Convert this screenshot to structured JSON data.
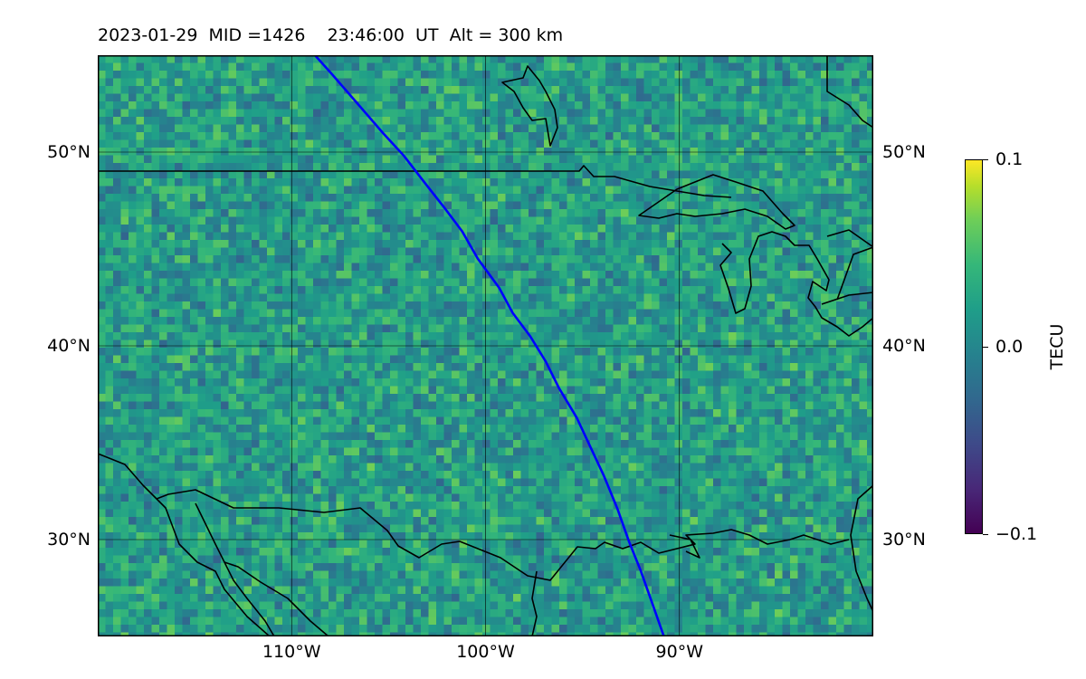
{
  "title": "2023-01-29  MID =1426    23:46:00  UT  Alt = 300 km",
  "map": {
    "extent": {
      "lon_min": -120,
      "lon_max": -80,
      "lat_min": 25,
      "lat_max": 55
    },
    "grid": true,
    "lat_labels": [
      {
        "lat": 50,
        "label": "50°N"
      },
      {
        "lat": 40,
        "label": "40°N"
      },
      {
        "lat": 30,
        "label": "30°N"
      }
    ],
    "lon_labels": [
      {
        "lon": -110,
        "label": "110°W"
      },
      {
        "lon": -100,
        "label": "100°W"
      },
      {
        "lon": -90,
        "label": "90°W"
      }
    ],
    "satellite_track": {
      "color": "#0000ff",
      "points": [
        [
          -108.8,
          55
        ],
        [
          -107.9,
          54
        ],
        [
          -106.6,
          52.5
        ],
        [
          -105.3,
          51.0
        ],
        [
          -104.2,
          49.8
        ],
        [
          -103.2,
          48.5
        ],
        [
          -102.1,
          47.1
        ],
        [
          -101.2,
          45.9
        ],
        [
          -100.4,
          44.5
        ],
        [
          -99.3,
          43.0
        ],
        [
          -98.6,
          41.7
        ],
        [
          -97.7,
          40.5
        ],
        [
          -96.9,
          39.2
        ],
        [
          -96.2,
          37.8
        ],
        [
          -95.3,
          36.3
        ],
        [
          -94.6,
          34.8
        ],
        [
          -93.9,
          33.3
        ],
        [
          -93.2,
          31.6
        ],
        [
          -92.6,
          29.9
        ],
        [
          -92.0,
          28.4
        ],
        [
          -91.4,
          26.7
        ],
        [
          -90.8,
          25
        ]
      ]
    },
    "field": {
      "variable": "TECU",
      "min": -0.1,
      "max": 0.1
    }
  },
  "colorbar": {
    "label": "TECU",
    "ticks": [
      {
        "value": 0.1,
        "label": "0.1"
      },
      {
        "value": 0.0,
        "label": "0.0"
      },
      {
        "value": -0.1,
        "label": "−0.1"
      }
    ],
    "colormap": "viridis"
  }
}
